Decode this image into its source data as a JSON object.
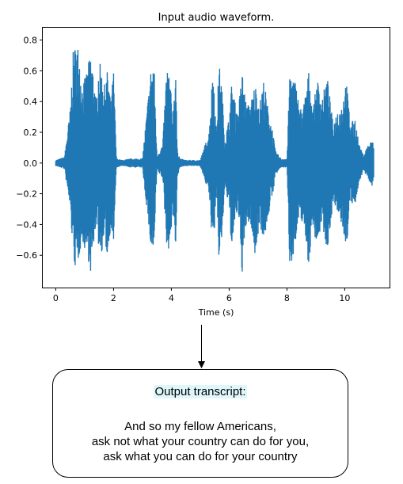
{
  "chart_data": {
    "type": "line",
    "title": "Input audio waveform.",
    "xlabel": "Time (s)",
    "ylabel": "",
    "xlim": [
      -0.45,
      11.55
    ],
    "ylim": [
      -0.81,
      0.88
    ],
    "xticks": [
      "0",
      "2",
      "4",
      "6",
      "8",
      "10"
    ],
    "yticks": [
      "−0.6",
      "−0.4",
      "−0.2",
      "0.0",
      "0.2",
      "0.4",
      "0.6",
      "0.8"
    ],
    "grid": false,
    "series_color": "#1f77b4",
    "envelope": {
      "x": [
        0.0,
        0.3,
        0.5,
        0.6,
        0.7,
        0.8,
        0.9,
        1.0,
        1.1,
        1.2,
        1.3,
        1.4,
        1.5,
        1.6,
        1.7,
        1.8,
        1.9,
        2.0,
        2.1,
        2.3,
        2.6,
        3.0,
        3.3,
        3.4,
        3.5,
        3.7,
        3.85,
        3.95,
        4.05,
        4.15,
        4.2,
        4.3,
        4.5,
        4.8,
        5.0,
        5.3,
        5.45,
        5.55,
        5.65,
        5.75,
        5.85,
        6.0,
        6.1,
        6.2,
        6.3,
        6.45,
        6.6,
        6.75,
        6.9,
        7.05,
        7.2,
        7.35,
        7.5,
        7.6,
        7.8,
        8.0,
        8.1,
        8.3,
        8.45,
        8.6,
        8.75,
        8.9,
        9.05,
        9.2,
        9.4,
        9.6,
        9.75,
        9.9,
        10.05,
        10.2,
        10.35,
        10.5,
        10.65,
        10.8,
        10.95,
        11.0
      ],
      "max": [
        0.02,
        0.04,
        0.35,
        0.72,
        0.78,
        0.76,
        0.5,
        0.55,
        0.62,
        0.72,
        0.6,
        0.4,
        0.68,
        0.58,
        0.5,
        0.62,
        0.4,
        0.6,
        0.03,
        0.02,
        0.03,
        0.03,
        0.63,
        0.66,
        0.05,
        0.12,
        0.66,
        0.55,
        0.3,
        0.67,
        0.1,
        0.03,
        0.02,
        0.02,
        0.02,
        0.2,
        0.66,
        0.2,
        0.66,
        0.5,
        0.15,
        0.3,
        0.55,
        0.4,
        0.32,
        0.6,
        0.37,
        0.4,
        0.52,
        0.38,
        0.55,
        0.35,
        0.22,
        0.08,
        0.03,
        0.03,
        0.6,
        0.53,
        0.35,
        0.4,
        0.6,
        0.35,
        0.55,
        0.42,
        0.56,
        0.25,
        0.35,
        0.38,
        0.55,
        0.25,
        0.3,
        0.12,
        0.05,
        0.12,
        0.15,
        0.12
      ],
      "min": [
        -0.02,
        -0.04,
        -0.3,
        -0.6,
        -0.72,
        -0.62,
        -0.5,
        -0.56,
        -0.6,
        -0.72,
        -0.6,
        -0.36,
        -0.58,
        -0.58,
        -0.5,
        -0.65,
        -0.4,
        -0.53,
        -0.03,
        -0.02,
        -0.03,
        -0.03,
        -0.57,
        -0.58,
        -0.05,
        -0.1,
        -0.57,
        -0.55,
        -0.3,
        -0.62,
        -0.1,
        -0.03,
        -0.02,
        -0.02,
        -0.02,
        -0.2,
        -0.6,
        -0.2,
        -0.64,
        -0.5,
        -0.15,
        -0.3,
        -0.6,
        -0.4,
        -0.3,
        -0.72,
        -0.4,
        -0.4,
        -0.63,
        -0.38,
        -0.52,
        -0.35,
        -0.22,
        -0.08,
        -0.03,
        -0.03,
        -0.69,
        -0.53,
        -0.35,
        -0.42,
        -0.68,
        -0.4,
        -0.57,
        -0.38,
        -0.58,
        -0.25,
        -0.35,
        -0.4,
        -0.58,
        -0.25,
        -0.3,
        -0.12,
        -0.05,
        -0.1,
        -0.15,
        -0.1
      ]
    }
  },
  "transcript": {
    "heading": "Output transcript:",
    "lines": [
      "And so my fellow Americans,",
      "ask not what your country can do for you,",
      "ask what you can do for your country"
    ]
  }
}
